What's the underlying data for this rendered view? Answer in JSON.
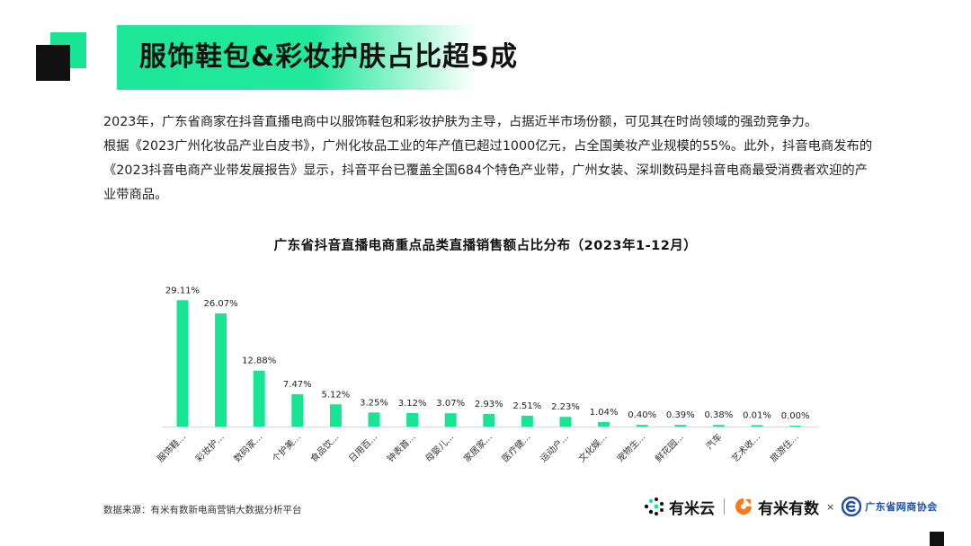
{
  "header": {
    "title": "服饰鞋包&彩妆护肤占比超5成"
  },
  "intro": {
    "paragraph_1": "2023年，广东省商家在抖音直播电商中以服饰鞋包和彩妆护肤为主导，占据近半市场份额，可见其在时尚领域的强劲竞争力。",
    "paragraph_2": "根据《2023广州化妆品产业白皮书》，广州化妆品工业的年产值已超过1000亿元，占全国美妆产业规模的55%。此外，抖音电商发布的《2023抖音电商产业带发展报告》显示，抖音平台已覆盖全国684个特色产业带，广州女装、深圳数码是抖音电商最受消费者欢迎的产业带商品。"
  },
  "chart_data": {
    "type": "bar",
    "title": "广东省抖音直播电商重点品类直播销售额占比分布（2023年1-12月）",
    "categories": [
      "服饰鞋...",
      "彩妆护...",
      "数码家...",
      "个护美...",
      "食品饮...",
      "日用百...",
      "钟表首...",
      "母婴儿...",
      "家居家...",
      "医疗健...",
      "运动户...",
      "文化娱...",
      "宠物生...",
      "鲜花园...",
      "汽车",
      "艺术收...",
      "旅游住..."
    ],
    "values": [
      29.11,
      26.07,
      12.88,
      7.47,
      5.12,
      3.25,
      3.12,
      3.07,
      2.93,
      2.51,
      2.23,
      1.04,
      0.4,
      0.39,
      0.38,
      0.01,
      0.0
    ],
    "value_labels": [
      "29.11%",
      "26.07%",
      "12.88%",
      "7.47%",
      "5.12%",
      "3.25%",
      "3.12%",
      "3.07%",
      "2.93%",
      "2.51%",
      "2.23%",
      "1.04%",
      "0.40%",
      "0.39%",
      "0.38%",
      "0.01%",
      "0.00%"
    ],
    "ylim": [
      0,
      30
    ],
    "bar_color": "#17e495",
    "grid": false,
    "legend": "none"
  },
  "footer": {
    "source": "数据来源：有米有数新电商营销大数据分析平台",
    "logo_1": "有米云",
    "logo_2": "有米有数",
    "times": "×",
    "logo_3": "广东省网商协会"
  },
  "colors": {
    "accent": "#17e495",
    "dark": "#111111",
    "association_blue": "#1d4fa8",
    "orange": "#f47a20"
  },
  "icons": {
    "logo_1_icon": "dotted-cloud-icon",
    "logo_2_icon": "orange-swirl-icon",
    "logo_3_icon": "blue-e-icon"
  }
}
